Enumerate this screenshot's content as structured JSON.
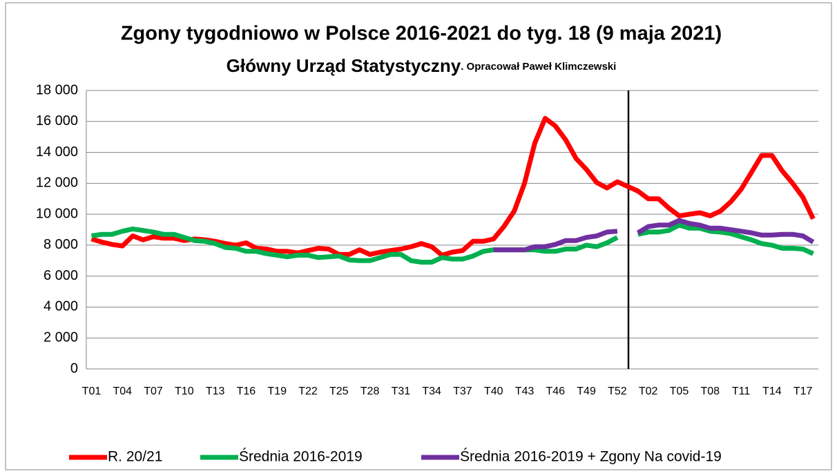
{
  "chart_data": {
    "type": "line",
    "title": "Zgony tygodniowo w Polsce 2016-2021 do tyg. 18 (9 maja 2021)",
    "subtitle": "Główny Urząd Statystyczny",
    "annotation": ". Opracował Paweł Klimczewski",
    "categories": [
      "T01",
      null,
      null,
      "T04",
      null,
      null,
      "T07",
      null,
      null,
      "T10",
      null,
      null,
      "T13",
      null,
      null,
      "T16",
      null,
      null,
      "T19",
      null,
      null,
      "T22",
      null,
      null,
      "T25",
      null,
      null,
      "T28",
      null,
      null,
      "T31",
      null,
      null,
      "T34",
      null,
      null,
      "T37",
      null,
      null,
      "T40",
      null,
      null,
      "T43",
      null,
      null,
      "T46",
      null,
      null,
      "T49",
      null,
      null,
      "T52",
      null,
      null,
      "T02",
      null,
      null,
      "T05",
      null,
      null,
      "T08",
      null,
      null,
      "T11",
      null,
      null,
      "T14",
      null,
      null,
      "T17",
      null
    ],
    "series": [
      {
        "name": "R. 20/21",
        "color": "#ff0000",
        "values": [
          8400,
          8200,
          8050,
          7950,
          8600,
          8350,
          8550,
          8450,
          8450,
          8300,
          8400,
          8350,
          8250,
          8100,
          8000,
          8150,
          7800,
          7750,
          7600,
          7600,
          7500,
          7650,
          7800,
          7750,
          7400,
          7400,
          7700,
          7400,
          7550,
          7650,
          7750,
          7900,
          8100,
          7900,
          7350,
          7550,
          7650,
          8250,
          8250,
          8400,
          9200,
          10200,
          12000,
          14600,
          16200,
          15700,
          14800,
          13600,
          12900,
          12050,
          11700,
          12100,
          11800,
          11500,
          11000,
          11000,
          10400,
          9900,
          10000,
          10100,
          9900,
          10200,
          10800,
          11600,
          12700,
          13800,
          13800,
          12800,
          12000,
          11100,
          9700
        ]
      },
      {
        "name": "Średnia 2016-2019",
        "color": "#00b050",
        "values": [
          8600,
          8700,
          8700,
          8900,
          9050,
          8950,
          8850,
          8700,
          8700,
          8500,
          8300,
          8250,
          8100,
          7850,
          7800,
          7600,
          7600,
          7450,
          7350,
          7250,
          7350,
          7350,
          7200,
          7250,
          7300,
          7050,
          7000,
          7000,
          7200,
          7400,
          7400,
          7000,
          6900,
          6900,
          7200,
          7100,
          7100,
          7300,
          7600,
          7700,
          7700,
          7700,
          7700,
          7700,
          7600,
          7600,
          7750,
          7750,
          8000,
          7900,
          8150,
          8500,
          null,
          8700,
          8850,
          8850,
          8950,
          9300,
          9100,
          9100,
          8900,
          8850,
          8750,
          8550,
          8350,
          8100,
          8000,
          7800,
          7800,
          7750,
          7450
        ]
      },
      {
        "name": "Średnia 2016-2019 + Zgony Na covid-19",
        "color": "#7030a0",
        "values": [
          null,
          null,
          null,
          null,
          null,
          null,
          null,
          null,
          null,
          null,
          null,
          null,
          null,
          null,
          null,
          null,
          null,
          null,
          null,
          null,
          null,
          null,
          null,
          null,
          null,
          null,
          null,
          null,
          null,
          null,
          null,
          null,
          null,
          null,
          null,
          null,
          null,
          null,
          null,
          7700,
          7700,
          7700,
          7700,
          7900,
          7900,
          8050,
          8300,
          8300,
          8500,
          8600,
          8850,
          8900,
          null,
          8800,
          9200,
          9300,
          9300,
          9600,
          9400,
          9300,
          9100,
          9100,
          9000,
          8900,
          8800,
          8650,
          8650,
          8700,
          8700,
          8600,
          8200
        ]
      }
    ],
    "ylim": [
      0,
      18000
    ],
    "yticks": [
      0,
      {
        "value": 2000,
        "label": "2 000"
      },
      {
        "value": 4000,
        "label": "4 000"
      },
      {
        "value": 6000,
        "label": "6 000"
      },
      {
        "value": 8000,
        "label": "8 000"
      },
      {
        "value": 10000,
        "label": "10 000"
      },
      {
        "value": 12000,
        "label": "12 000"
      },
      {
        "value": 14000,
        "label": "14 000"
      },
      {
        "value": 16000,
        "label": "16 000"
      },
      {
        "value": 18000,
        "label": "18 000"
      }
    ],
    "grid": true
  }
}
